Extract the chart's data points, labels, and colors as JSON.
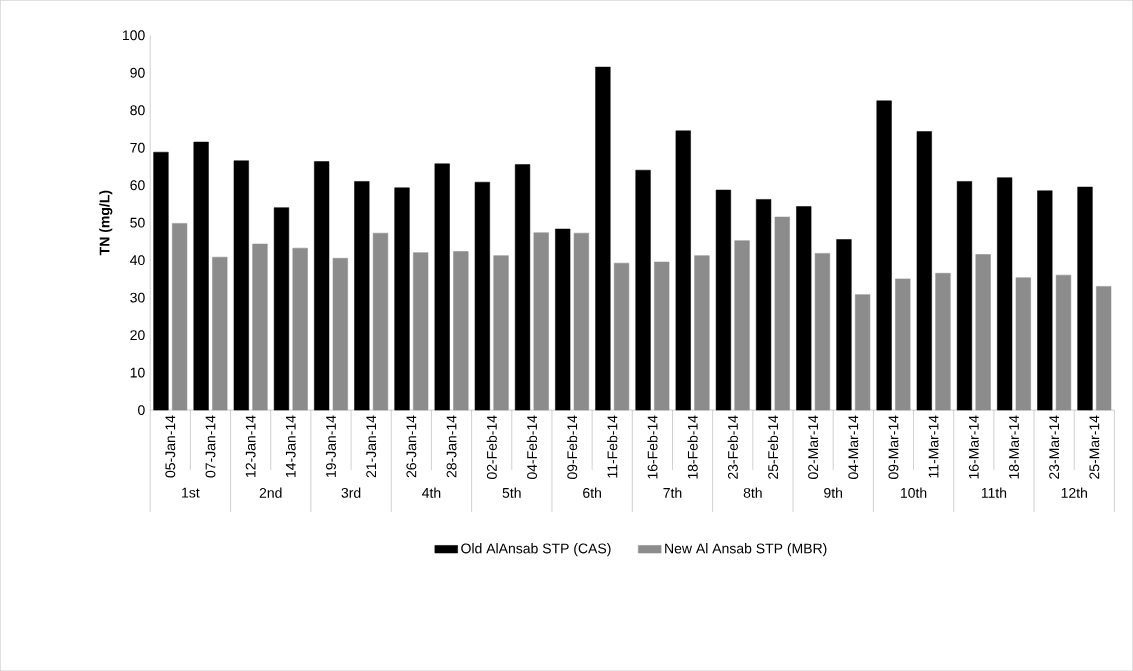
{
  "chart_data": {
    "type": "bar",
    "ylabel": "TN (mg/L)",
    "categories": [
      "05-Jan-14",
      "07-Jan-14",
      "12-Jan-14",
      "14-Jan-14",
      "19-Jan-14",
      "21-Jan-14",
      "26-Jan-14",
      "28-Jan-14",
      "02-Feb-14",
      "04-Feb-14",
      "09-Feb-14",
      "11-Feb-14",
      "16-Feb-14",
      "18-Feb-14",
      "23-Feb-14",
      "25-Feb-14",
      "02-Mar-14",
      "04-Mar-14",
      "09-Mar-14",
      "11-Mar-14",
      "16-Mar-14",
      "18-Mar-14",
      "23-Mar-14",
      "25-Mar-14"
    ],
    "series": [
      {
        "name": "Old AlAnsab STP (CAS)",
        "color": "#000000",
        "values": [
          68.8,
          71.5,
          66.5,
          54,
          66.3,
          61,
          59.3,
          65.7,
          60.8,
          65.5,
          48.3,
          91.5,
          64,
          74.5,
          58.7,
          56.2,
          54.3,
          45.5,
          82.5,
          74.3,
          61,
          62,
          58.5,
          59.5
        ]
      },
      {
        "name": "New Al Ansab STP (MBR)",
        "color": "#8c8c8c",
        "values": [
          49.8,
          40.8,
          44.3,
          43.2,
          40.5,
          47.2,
          42,
          42.3,
          41.2,
          47.3,
          47.2,
          39.2,
          39.5,
          41.2,
          45.2,
          51.5,
          41.8,
          30.8,
          35,
          36.5,
          41.5,
          35.3,
          36,
          33
        ]
      }
    ],
    "annotations": [
      "1st",
      "2nd",
      "3rd",
      "4th",
      "5th",
      "6th",
      "7th",
      "8th",
      "9th",
      "10th",
      "11th",
      "12th"
    ],
    "ylim": [
      0,
      100
    ],
    "yticks": [
      0,
      10,
      20,
      30,
      40,
      50,
      60,
      70,
      80,
      90,
      100
    ],
    "grid": false,
    "legend": "bottom"
  }
}
